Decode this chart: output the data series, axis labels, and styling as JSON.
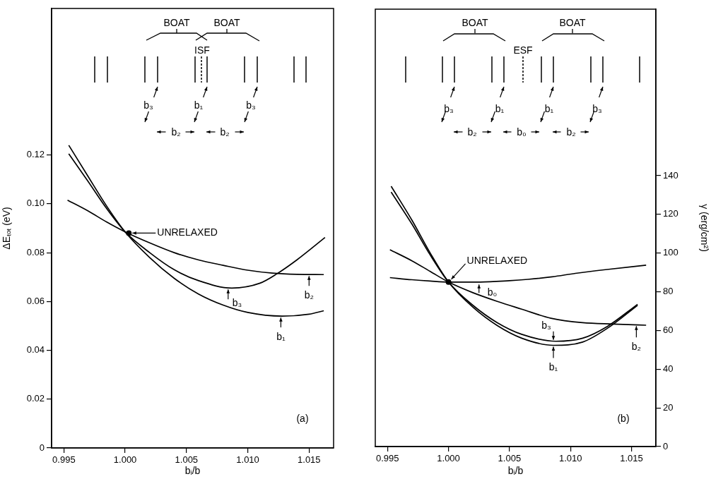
{
  "chart_data": [
    {
      "type": "line",
      "xlabel": "bᵢ/b",
      "ylabel": "ΔEₜₒₜ (eV)",
      "xlim": [
        0.994,
        1.017
      ],
      "ylim": [
        0,
        0.18
      ],
      "xticks": [
        {
          "value": 0.995,
          "label": "0.995"
        },
        {
          "value": 1,
          "label": "1.000"
        },
        {
          "value": 1.005,
          "label": "1.005"
        },
        {
          "value": 1.01,
          "label": "1.010"
        },
        {
          "value": 1.015,
          "label": "1.015"
        }
      ],
      "yticks": [
        0,
        0.02,
        0.04,
        0.06,
        0.08,
        {
          "value": 0.1,
          "label": "0.10"
        },
        0.12
      ],
      "grid": false,
      "legend": false,
      "marker": "none",
      "line_style": "solid",
      "series": [
        {
          "color": "#000000",
          "x": [
            0.9954,
            0.997,
            0.9985,
            1.0,
            1.002,
            1.004,
            1.006,
            1.008,
            1.01,
            1.0128,
            1.015,
            1.0162
          ],
          "values": [
            0.124,
            0.111,
            0.099,
            0.0885,
            0.078,
            0.0695,
            0.063,
            0.0585,
            0.0555,
            0.054,
            0.0548,
            0.0562
          ]
        },
        {
          "color": "#000000",
          "x": [
            0.9953,
            0.997,
            0.9985,
            1.0,
            1.002,
            1.004,
            1.006,
            1.008,
            1.01,
            1.012,
            1.014,
            1.0162
          ],
          "values": [
            0.1015,
            0.097,
            0.0925,
            0.0885,
            0.084,
            0.08,
            0.077,
            0.0748,
            0.0728,
            0.0716,
            0.0711,
            0.071
          ]
        },
        {
          "color": "#000000",
          "x": [
            0.9954,
            0.997,
            0.9985,
            1.0,
            1.002,
            1.004,
            1.006,
            1.0087,
            1.011,
            1.0124,
            1.014,
            1.0163
          ],
          "values": [
            0.1205,
            0.109,
            0.098,
            0.0885,
            0.08,
            0.073,
            0.0685,
            0.0655,
            0.0675,
            0.0714,
            0.077,
            0.0862
          ]
        }
      ],
      "annotations": [
        "BOAT",
        "BOAT",
        "ISF",
        "b₃",
        "b₁",
        "b₃",
        "b₂",
        "b₂",
        "(a)",
        {
          "text": "UNRELAXED",
          "x": 1.0003,
          "y": 0.088
        },
        {
          "text": "b₃",
          "x": 1.0084,
          "y": 0.0655
        },
        {
          "text": "b₁",
          "x": 1.0127,
          "y": 0.054
        },
        {
          "text": "b₂",
          "x": 1.015,
          "y": 0.071
        }
      ]
    },
    {
      "type": "line",
      "xlabel": "bᵢ/b",
      "ylabel": "γ (erg/cm²)",
      "xlim": [
        0.994,
        1.017
      ],
      "ylim": [
        0,
        226
      ],
      "xticks": [
        {
          "value": 0.995,
          "label": "0.995"
        },
        {
          "value": 1,
          "label": "1.000"
        },
        {
          "value": 1.005,
          "label": "1.005"
        },
        {
          "value": 1.01,
          "label": "1.010"
        },
        {
          "value": 1.015,
          "label": "1.015"
        }
      ],
      "yticks": [
        0,
        20,
        40,
        60,
        80,
        100,
        120,
        140
      ],
      "grid": false,
      "legend": false,
      "marker": "none",
      "line_style": "solid",
      "series": [
        {
          "color": "#000000",
          "x": [
            0.9953,
            0.997,
            0.9985,
            1.0,
            1.002,
            1.004,
            1.006,
            1.0086,
            1.011,
            1.013,
            1.0155
          ],
          "values": [
            134.5,
            117,
            100,
            85,
            72,
            62.5,
            56,
            52.3,
            54,
            61,
            73
          ]
        },
        {
          "color": "#000000",
          "x": [
            0.9953,
            0.997,
            0.9985,
            1.0,
            1.002,
            1.004,
            1.006,
            1.0088,
            1.011,
            1.013,
            1.0155
          ],
          "values": [
            131.5,
            115,
            99,
            85,
            73,
            64,
            58,
            54.4,
            56,
            62,
            73.5
          ]
        },
        {
          "color": "#000000",
          "x": [
            0.9952,
            0.997,
            0.9985,
            1.0,
            1.002,
            1.004,
            1.006,
            1.0084,
            1.011,
            1.0135,
            1.0162
          ],
          "values": [
            101.7,
            96,
            90.5,
            85,
            79.5,
            75,
            71,
            66.3,
            64,
            63.3,
            62.7
          ]
        },
        {
          "color": "#000000",
          "x": [
            0.9952,
            0.997,
            0.9985,
            1.0,
            1.0026,
            1.005,
            1.0065,
            1.0085,
            1.0104,
            1.013,
            1.0162
          ],
          "values": [
            87.3,
            86.2,
            85.5,
            85,
            85,
            85.7,
            86.4,
            87.7,
            89.5,
            91.5,
            93.7
          ]
        }
      ],
      "annotations": [
        "BOAT",
        "BOAT",
        "ESF",
        "b₃",
        "b₁",
        "b₁",
        "b₃",
        "b₂",
        "b₀",
        "b₂",
        "(b)",
        {
          "text": "UNRELAXED",
          "x": 1.0,
          "y": 85
        },
        {
          "text": "b₀",
          "x": 1.0025,
          "y": 84.5
        },
        {
          "text": "b₃",
          "x": 1.0086,
          "y": 54.4
        },
        {
          "text": "b₁",
          "x": 1.0086,
          "y": 52.3
        },
        {
          "text": "b₂",
          "x": 1.0154,
          "y": 63
        }
      ]
    }
  ]
}
